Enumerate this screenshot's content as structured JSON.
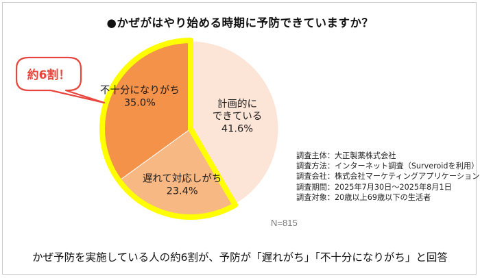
{
  "title": "●かぜがはやり始める時期に予防できていますか？",
  "chart_data": {
    "type": "pie",
    "title": "●かぜがはやり始める時期に予防できていますか？",
    "slices": [
      {
        "label": "計画的に\nできている",
        "value": 41.6,
        "value_label": "41.6%",
        "color": "#fce4d6"
      },
      {
        "label": "遅れて対応しがち",
        "value": 23.4,
        "value_label": "23.4%",
        "color": "#f8b884"
      },
      {
        "label": "不十分になりがち",
        "value": 35.0,
        "value_label": "35.0%",
        "color": "#f4924a"
      }
    ],
    "highlight_color": "#ffff00",
    "callout": "約6割！",
    "sample_size": "N=815"
  },
  "callout": "約6割！",
  "sample_size": "N=815",
  "survey_info": [
    "調査主体：大正製薬株式会社",
    "調査方法：インターネット調査（Surveroidを利用）",
    "調査会社：株式会社マーケティングアプリケーションズ",
    "調査期間：2025年7月30日～2025年8月1日",
    "調査対象：20歳以上69歳以下の生活者"
  ],
  "caption": "かぜ予防を実施している人の約6割が、予防が「遅れがち」「不十分になりがち」と回答"
}
